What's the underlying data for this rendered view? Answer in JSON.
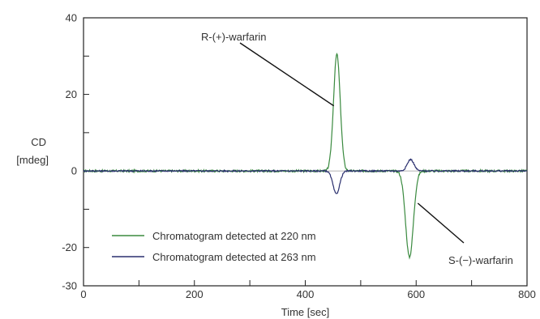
{
  "chart_data": {
    "type": "line",
    "title": "",
    "xlabel": "Time [sec]",
    "ylabel": [
      "CD",
      "[mdeg]"
    ],
    "xlim": [
      0,
      800
    ],
    "ylim": [
      -30,
      40
    ],
    "xticks": [
      0,
      200,
      400,
      600,
      800
    ],
    "xticks_minor": [
      100,
      300,
      500,
      700
    ],
    "yticks": [
      -30,
      -20,
      0,
      20,
      40
    ],
    "yticks_minor": [
      -10,
      10,
      30
    ],
    "grid": false,
    "legend_position": "bottom-left",
    "series": [
      {
        "name": "Chromatogram detected at 220 nm",
        "color": "#3a8a3f",
        "peaks": [
          {
            "x": 457,
            "y": 30.5
          },
          {
            "x": 588,
            "y": -22.5
          }
        ]
      },
      {
        "name": "Chromatogram detected at 263 nm",
        "color": "#2a2f6e",
        "peaks": [
          {
            "x": 456,
            "y": -6.0
          },
          {
            "x": 590,
            "y": 3.0
          }
        ]
      }
    ],
    "annotations": [
      {
        "text": "R-(+)-warfarin",
        "points_to": {
          "x": 450,
          "y": 17
        }
      },
      {
        "text": "S-(−)-warfarin",
        "points_to": {
          "x": 603,
          "y": -8
        }
      }
    ]
  }
}
